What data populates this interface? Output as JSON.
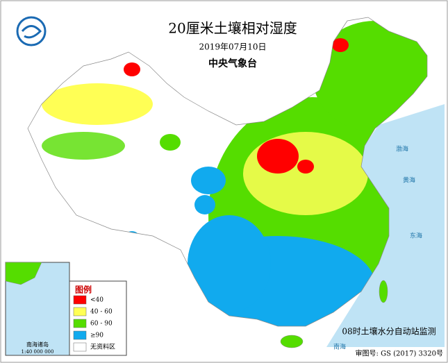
{
  "header": {
    "title": "20厘米土壤相对湿度",
    "date": "2019年07月10日",
    "issuer": "中央气象台"
  },
  "legend": {
    "title": "图例",
    "items": [
      {
        "label": "<40",
        "color": "#ff0000"
      },
      {
        "label": "40 - 60",
        "color": "#ffff55"
      },
      {
        "label": "60 - 90",
        "color": "#55dd00"
      },
      {
        "label": "≥90",
        "color": "#11aaee"
      },
      {
        "label": "无资料区",
        "color": "#ffffff"
      }
    ]
  },
  "inset": {
    "label": "南海诸岛",
    "scale": "1:40 000 000"
  },
  "seas": [
    "渤海",
    "黄海",
    "东海",
    "南海"
  ],
  "footer": {
    "note": "08时土壤水分自动站监测",
    "approval": "审图号: GS (2017) 3320号"
  }
}
